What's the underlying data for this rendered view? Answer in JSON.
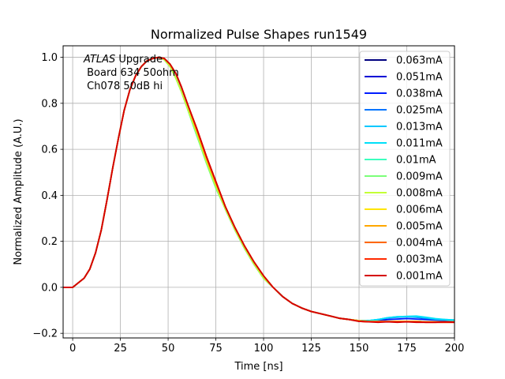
{
  "chart_data": {
    "type": "line",
    "title": "Normalized Pulse Shapes run1549",
    "xlabel": "Time [ns]",
    "ylabel": "Normalized Amplitude (A.U.)",
    "xlim": [
      -5,
      200
    ],
    "ylim": [
      -0.22,
      1.05
    ],
    "xticks": [
      0,
      25,
      50,
      75,
      100,
      125,
      150,
      175,
      200
    ],
    "xtick_labels": [
      "0",
      "25",
      "50",
      "75",
      "100",
      "125",
      "150",
      "175",
      "200"
    ],
    "yticks": [
      -0.2,
      0.0,
      0.2,
      0.4,
      0.6,
      0.8,
      1.0
    ],
    "ytick_labels": [
      "−0.2",
      "0.0",
      "0.2",
      "0.4",
      "0.6",
      "0.8",
      "1.0"
    ],
    "grid": true,
    "legend_position": "top-right",
    "annotation": {
      "italic": "ATLAS",
      "line1_rest": " Upgrade",
      "line2": " Board 634 50ohm",
      "line3": " Ch078 50dB hi"
    },
    "x": [
      -5,
      0,
      3,
      6,
      9,
      12,
      15,
      18,
      21,
      24,
      27,
      30,
      33,
      36,
      39,
      42,
      45,
      48,
      51,
      54,
      57,
      60,
      65,
      70,
      75,
      80,
      85,
      90,
      95,
      100,
      105,
      110,
      115,
      120,
      125,
      130,
      135,
      140,
      145,
      150,
      155,
      160,
      165,
      170,
      175,
      180,
      185,
      190,
      195,
      200
    ],
    "series": [
      {
        "name": "0.063mA",
        "color": "#00007f",
        "values": [
          0.0,
          0.0,
          0.02,
          0.04,
          0.08,
          0.15,
          0.25,
          0.38,
          0.52,
          0.65,
          0.77,
          0.86,
          0.92,
          0.96,
          0.985,
          0.995,
          1.0,
          0.995,
          0.97,
          0.93,
          0.87,
          0.8,
          0.68,
          0.56,
          0.45,
          0.34,
          0.25,
          0.17,
          0.1,
          0.04,
          0.0,
          -0.04,
          -0.07,
          -0.09,
          -0.105,
          -0.115,
          -0.125,
          -0.135,
          -0.14,
          -0.145,
          -0.145,
          -0.148,
          -0.148,
          -0.148,
          -0.148,
          -0.148,
          -0.15,
          -0.15,
          -0.15,
          -0.15
        ]
      },
      {
        "name": "0.051mA",
        "color": "#0000d5",
        "values": [
          0.0,
          0.0,
          0.02,
          0.04,
          0.08,
          0.15,
          0.25,
          0.38,
          0.52,
          0.65,
          0.77,
          0.86,
          0.92,
          0.96,
          0.985,
          0.995,
          1.0,
          0.995,
          0.97,
          0.93,
          0.87,
          0.8,
          0.68,
          0.56,
          0.45,
          0.34,
          0.25,
          0.17,
          0.1,
          0.04,
          0.0,
          -0.04,
          -0.07,
          -0.09,
          -0.105,
          -0.115,
          -0.125,
          -0.135,
          -0.14,
          -0.145,
          -0.145,
          -0.148,
          -0.148,
          -0.148,
          -0.148,
          -0.148,
          -0.15,
          -0.15,
          -0.15,
          -0.15
        ]
      },
      {
        "name": "0.038mA",
        "color": "#001cff",
        "values": [
          0.0,
          0.0,
          0.02,
          0.04,
          0.08,
          0.15,
          0.25,
          0.38,
          0.52,
          0.65,
          0.77,
          0.86,
          0.92,
          0.96,
          0.985,
          0.995,
          1.0,
          0.995,
          0.97,
          0.93,
          0.87,
          0.8,
          0.68,
          0.56,
          0.45,
          0.34,
          0.25,
          0.17,
          0.1,
          0.04,
          0.0,
          -0.04,
          -0.07,
          -0.09,
          -0.105,
          -0.115,
          -0.125,
          -0.135,
          -0.14,
          -0.145,
          -0.145,
          -0.145,
          -0.14,
          -0.138,
          -0.136,
          -0.138,
          -0.14,
          -0.142,
          -0.144,
          -0.145
        ]
      },
      {
        "name": "0.025mA",
        "color": "#0074ff",
        "values": [
          0.0,
          0.0,
          0.02,
          0.04,
          0.08,
          0.15,
          0.25,
          0.38,
          0.52,
          0.65,
          0.77,
          0.86,
          0.92,
          0.96,
          0.985,
          0.995,
          1.0,
          0.995,
          0.97,
          0.93,
          0.87,
          0.8,
          0.68,
          0.56,
          0.45,
          0.34,
          0.25,
          0.17,
          0.1,
          0.04,
          0.0,
          -0.04,
          -0.07,
          -0.09,
          -0.105,
          -0.115,
          -0.125,
          -0.135,
          -0.14,
          -0.145,
          -0.145,
          -0.14,
          -0.133,
          -0.13,
          -0.128,
          -0.13,
          -0.135,
          -0.14,
          -0.142,
          -0.145
        ]
      },
      {
        "name": "0.013mA",
        "color": "#00c8ff",
        "values": [
          0.0,
          0.0,
          0.02,
          0.04,
          0.08,
          0.15,
          0.25,
          0.38,
          0.52,
          0.65,
          0.77,
          0.86,
          0.92,
          0.96,
          0.985,
          0.995,
          1.0,
          0.99,
          0.96,
          0.91,
          0.85,
          0.78,
          0.66,
          0.55,
          0.44,
          0.34,
          0.25,
          0.17,
          0.1,
          0.04,
          0.0,
          -0.04,
          -0.07,
          -0.09,
          -0.105,
          -0.115,
          -0.125,
          -0.135,
          -0.14,
          -0.145,
          -0.145,
          -0.14,
          -0.132,
          -0.128,
          -0.127,
          -0.128,
          -0.132,
          -0.138,
          -0.14,
          -0.142
        ]
      },
      {
        "name": "0.011mA",
        "color": "#00e0f8",
        "values": [
          0.0,
          0.0,
          0.02,
          0.04,
          0.08,
          0.15,
          0.25,
          0.38,
          0.52,
          0.65,
          0.77,
          0.86,
          0.92,
          0.96,
          0.985,
          0.995,
          1.0,
          0.99,
          0.96,
          0.91,
          0.85,
          0.78,
          0.66,
          0.55,
          0.44,
          0.34,
          0.25,
          0.17,
          0.1,
          0.04,
          0.0,
          -0.04,
          -0.07,
          -0.09,
          -0.105,
          -0.115,
          -0.125,
          -0.135,
          -0.14,
          -0.145,
          -0.145,
          -0.14,
          -0.132,
          -0.128,
          -0.126,
          -0.125,
          -0.13,
          -0.136,
          -0.14,
          -0.142
        ]
      },
      {
        "name": "0.01mA",
        "color": "#3cffbe",
        "values": [
          0.0,
          0.0,
          0.02,
          0.04,
          0.08,
          0.15,
          0.25,
          0.38,
          0.52,
          0.65,
          0.77,
          0.86,
          0.92,
          0.96,
          0.985,
          0.995,
          1.0,
          0.99,
          0.96,
          0.91,
          0.85,
          0.78,
          0.66,
          0.55,
          0.44,
          0.34,
          0.25,
          0.17,
          0.1,
          0.04,
          0.0,
          -0.04,
          -0.07,
          -0.09,
          -0.105,
          -0.115,
          -0.125,
          -0.135,
          -0.14,
          -0.145,
          -0.148,
          -0.148,
          -0.148,
          -0.148,
          -0.148,
          -0.148,
          -0.15,
          -0.15,
          -0.15,
          -0.15
        ]
      },
      {
        "name": "0.009mA",
        "color": "#7cff79",
        "values": [
          0.0,
          0.0,
          0.02,
          0.04,
          0.08,
          0.15,
          0.25,
          0.38,
          0.52,
          0.65,
          0.77,
          0.86,
          0.92,
          0.96,
          0.985,
          0.995,
          1.0,
          0.99,
          0.96,
          0.91,
          0.85,
          0.78,
          0.66,
          0.54,
          0.43,
          0.34,
          0.25,
          0.17,
          0.1,
          0.04,
          0.0,
          -0.04,
          -0.07,
          -0.09,
          -0.105,
          -0.115,
          -0.125,
          -0.135,
          -0.14,
          -0.145,
          -0.148,
          -0.148,
          -0.148,
          -0.148,
          -0.148,
          -0.148,
          -0.15,
          -0.15,
          -0.15,
          -0.15
        ]
      },
      {
        "name": "0.008mA",
        "color": "#c4ff36",
        "values": [
          0.0,
          0.0,
          0.02,
          0.04,
          0.08,
          0.15,
          0.25,
          0.38,
          0.52,
          0.65,
          0.77,
          0.86,
          0.92,
          0.96,
          0.985,
          0.995,
          1.0,
          0.99,
          0.96,
          0.91,
          0.85,
          0.78,
          0.67,
          0.55,
          0.44,
          0.34,
          0.25,
          0.17,
          0.1,
          0.04,
          0.0,
          -0.04,
          -0.07,
          -0.09,
          -0.105,
          -0.115,
          -0.125,
          -0.135,
          -0.14,
          -0.145,
          -0.148,
          -0.148,
          -0.148,
          -0.148,
          -0.148,
          -0.148,
          -0.15,
          -0.15,
          -0.15,
          -0.15
        ]
      },
      {
        "name": "0.006mA",
        "color": "#ffe500",
        "values": [
          0.0,
          0.0,
          0.02,
          0.04,
          0.08,
          0.15,
          0.25,
          0.38,
          0.52,
          0.65,
          0.77,
          0.86,
          0.92,
          0.96,
          0.985,
          0.995,
          1.0,
          0.995,
          0.97,
          0.93,
          0.87,
          0.8,
          0.68,
          0.56,
          0.45,
          0.35,
          0.26,
          0.18,
          0.11,
          0.05,
          0.0,
          -0.04,
          -0.07,
          -0.09,
          -0.105,
          -0.115,
          -0.125,
          -0.135,
          -0.14,
          -0.145,
          -0.148,
          -0.148,
          -0.148,
          -0.148,
          -0.148,
          -0.148,
          -0.15,
          -0.15,
          -0.15,
          -0.15
        ]
      },
      {
        "name": "0.005mA",
        "color": "#ffa700",
        "values": [
          0.0,
          0.0,
          0.02,
          0.04,
          0.08,
          0.15,
          0.25,
          0.38,
          0.52,
          0.65,
          0.77,
          0.86,
          0.92,
          0.96,
          0.985,
          0.995,
          1.0,
          0.995,
          0.97,
          0.93,
          0.87,
          0.8,
          0.68,
          0.56,
          0.45,
          0.35,
          0.26,
          0.18,
          0.11,
          0.05,
          0.0,
          -0.04,
          -0.07,
          -0.09,
          -0.105,
          -0.115,
          -0.125,
          -0.135,
          -0.14,
          -0.145,
          -0.148,
          -0.148,
          -0.148,
          -0.148,
          -0.148,
          -0.148,
          -0.15,
          -0.15,
          -0.15,
          -0.15
        ]
      },
      {
        "name": "0.004mA",
        "color": "#ff6800",
        "values": [
          0.0,
          0.0,
          0.02,
          0.04,
          0.08,
          0.15,
          0.25,
          0.38,
          0.52,
          0.65,
          0.77,
          0.86,
          0.92,
          0.96,
          0.985,
          0.995,
          1.0,
          0.995,
          0.97,
          0.93,
          0.87,
          0.8,
          0.69,
          0.57,
          0.46,
          0.35,
          0.26,
          0.18,
          0.11,
          0.05,
          0.0,
          -0.04,
          -0.07,
          -0.09,
          -0.105,
          -0.115,
          -0.125,
          -0.135,
          -0.14,
          -0.148,
          -0.15,
          -0.15,
          -0.15,
          -0.15,
          -0.15,
          -0.15,
          -0.152,
          -0.152,
          -0.152,
          -0.152
        ]
      },
      {
        "name": "0.003mA",
        "color": "#ff2900",
        "values": [
          0.0,
          0.0,
          0.02,
          0.04,
          0.08,
          0.15,
          0.25,
          0.38,
          0.52,
          0.65,
          0.77,
          0.86,
          0.92,
          0.96,
          0.985,
          0.995,
          1.0,
          0.995,
          0.97,
          0.93,
          0.87,
          0.8,
          0.69,
          0.57,
          0.46,
          0.35,
          0.26,
          0.18,
          0.11,
          0.05,
          0.0,
          -0.04,
          -0.07,
          -0.09,
          -0.105,
          -0.115,
          -0.125,
          -0.135,
          -0.14,
          -0.148,
          -0.15,
          -0.15,
          -0.15,
          -0.15,
          -0.15,
          -0.15,
          -0.152,
          -0.152,
          -0.152,
          -0.152
        ]
      },
      {
        "name": "0.001mA",
        "color": "#d50000",
        "values": [
          0.0,
          0.0,
          0.02,
          0.04,
          0.08,
          0.15,
          0.25,
          0.38,
          0.52,
          0.65,
          0.77,
          0.86,
          0.92,
          0.96,
          0.985,
          0.995,
          1.0,
          0.995,
          0.97,
          0.93,
          0.87,
          0.8,
          0.69,
          0.57,
          0.46,
          0.35,
          0.26,
          0.18,
          0.11,
          0.05,
          0.0,
          -0.04,
          -0.07,
          -0.09,
          -0.105,
          -0.115,
          -0.125,
          -0.135,
          -0.14,
          -0.148,
          -0.15,
          -0.152,
          -0.15,
          -0.152,
          -0.15,
          -0.152,
          -0.152,
          -0.152,
          -0.15,
          -0.152
        ]
      }
    ]
  }
}
